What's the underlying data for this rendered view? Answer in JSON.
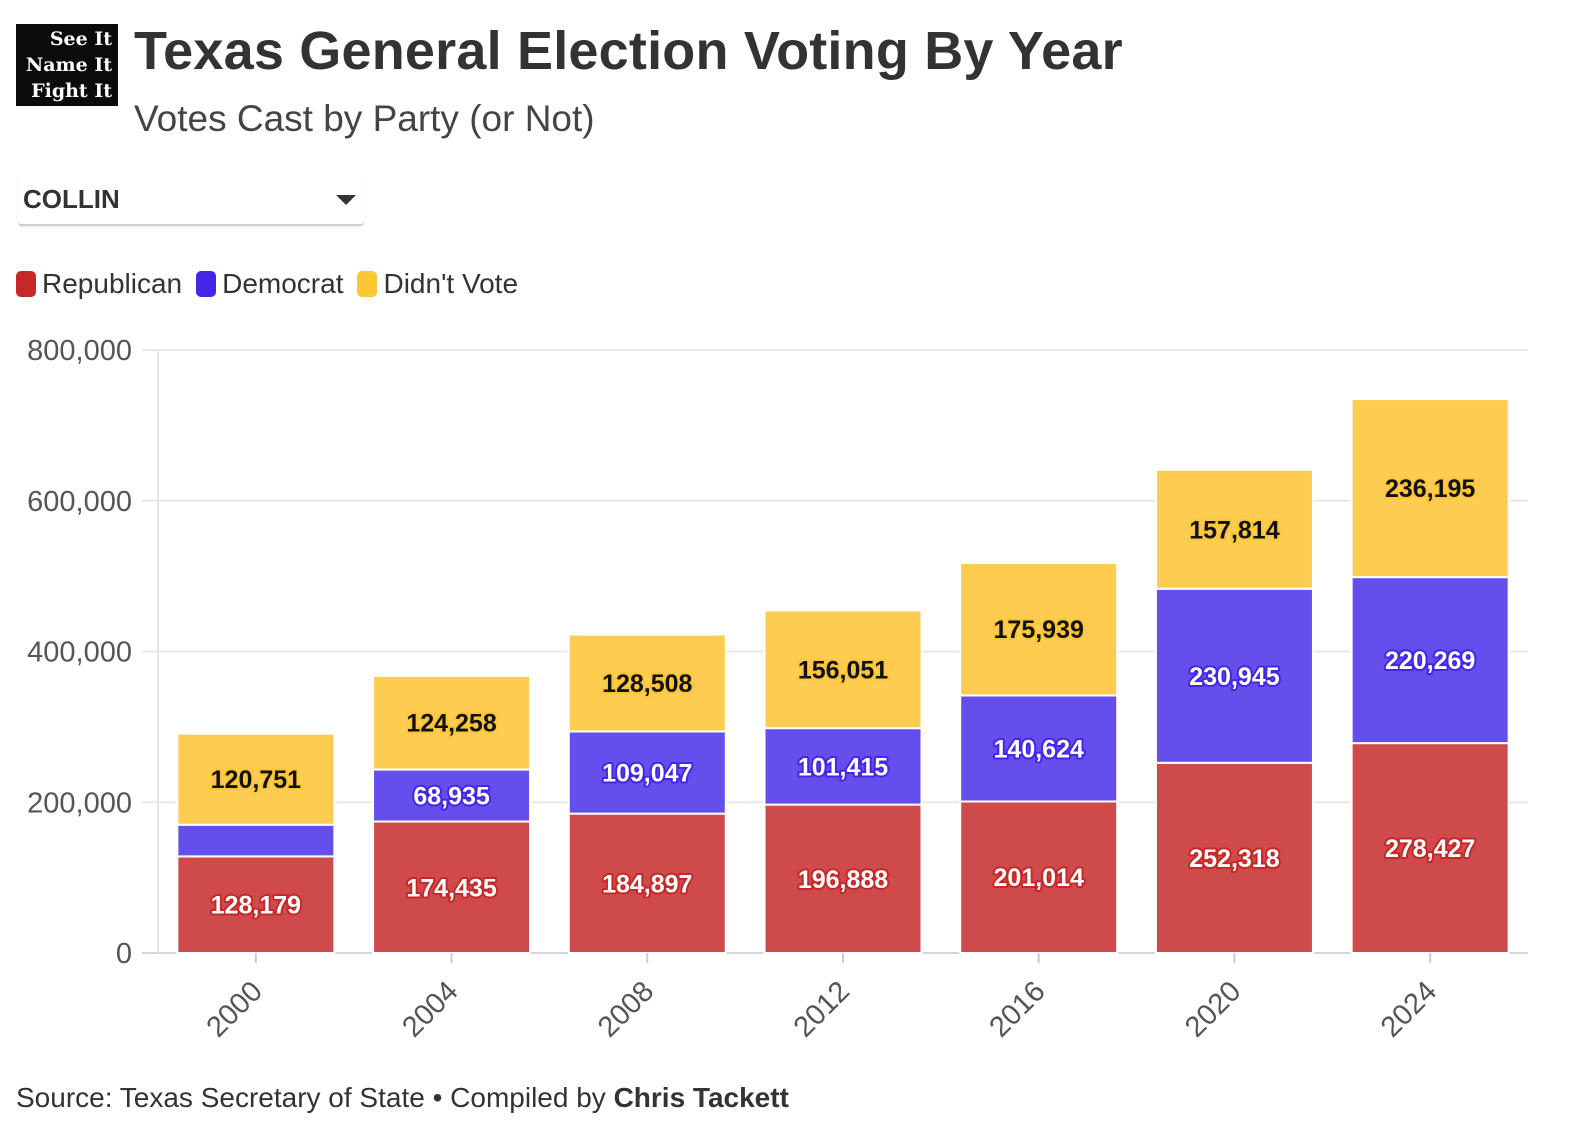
{
  "logo": {
    "line1": "See It",
    "line2": "Name It",
    "line3": "Fight It"
  },
  "header": {
    "title": "Texas General Election Voting By Year",
    "subtitle": "Votes Cast by Party (or Not)"
  },
  "filter": {
    "selected": "COLLIN",
    "icon": "chevron-down-icon"
  },
  "legend": {
    "items": [
      {
        "label": "Republican",
        "color": "#c62828"
      },
      {
        "label": "Democrat",
        "color": "#4326e8"
      },
      {
        "label": "Didn't Vote",
        "color": "#fec633"
      }
    ]
  },
  "footer": {
    "prefix": "Source: Texas Secretary of State • Compiled by ",
    "author": "Chris Tackett"
  },
  "chart_data": {
    "type": "bar",
    "stacked": true,
    "categories": [
      "2000",
      "2004",
      "2008",
      "2012",
      "2016",
      "2020",
      "2024"
    ],
    "series": [
      {
        "name": "Republican",
        "color": "#cf4b4b",
        "label_color": "#c62828",
        "values": [
          128179,
          174435,
          184897,
          196888,
          201014,
          252318,
          278427
        ],
        "labels": [
          "128,179",
          "174,435",
          "184,897",
          "196,888",
          "201,014",
          "252,318",
          "278,427"
        ]
      },
      {
        "name": "Democrat",
        "color": "#644fec",
        "label_color": "#4326e8",
        "values": [
          42000,
          68935,
          109047,
          101415,
          140624,
          230945,
          220269
        ],
        "labels": [
          "",
          "68,935",
          "109,047",
          "101,415",
          "140,624",
          "230,945",
          "220,269"
        ]
      },
      {
        "name": "Didn't Vote",
        "color": "#fecc50",
        "label_color": "#fec633",
        "values": [
          120751,
          124258,
          128508,
          156051,
          175939,
          157814,
          236195
        ],
        "labels": [
          "120,751",
          "124,258",
          "128,508",
          "156,051",
          "175,939",
          "157,814",
          "236,195"
        ]
      }
    ],
    "y_ticks": [
      0,
      200000,
      400000,
      600000,
      800000
    ],
    "y_tick_labels": [
      "0",
      "200,000",
      "400,000",
      "600,000",
      "800,000"
    ],
    "ylim": [
      0,
      800000
    ],
    "grid": true,
    "legend_position": "top-left"
  }
}
